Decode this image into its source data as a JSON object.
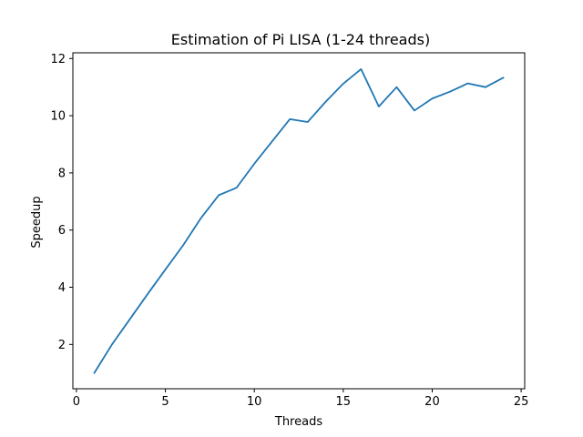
{
  "chart_data": {
    "type": "line",
    "title": "Estimation of Pi LISA (1-24 threads)",
    "xlabel": "Threads",
    "ylabel": "Speedup",
    "xlim": [
      -0.2,
      25.2
    ],
    "ylim": [
      0.45,
      12.2
    ],
    "xticks": [
      0,
      5,
      10,
      15,
      20,
      25
    ],
    "yticks": [
      2,
      4,
      6,
      8,
      10,
      12
    ],
    "grid": false,
    "series_color": "#1f77b4",
    "series": [
      {
        "x": [
          1,
          2,
          3,
          4,
          5,
          6,
          7,
          8,
          9,
          10,
          11,
          12,
          13,
          14,
          15,
          16,
          17,
          18,
          19,
          20,
          21,
          22,
          23,
          24
        ],
        "values": [
          1.0,
          2.0,
          2.88,
          3.76,
          4.62,
          5.47,
          6.42,
          7.22,
          7.48,
          8.32,
          9.1,
          9.88,
          9.78,
          10.48,
          11.12,
          11.63,
          10.32,
          11.0,
          10.18,
          10.6,
          10.84,
          11.13,
          11.0,
          11.33
        ]
      }
    ]
  }
}
